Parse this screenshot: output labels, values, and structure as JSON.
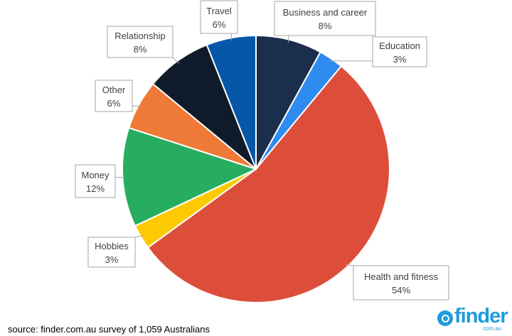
{
  "chart_data": {
    "type": "pie",
    "title": "",
    "slices": [
      {
        "label": "Business and career",
        "value": 8,
        "value_label": "8%",
        "color": "#1b2e4c"
      },
      {
        "label": "Education",
        "value": 3,
        "value_label": "3%",
        "color": "#2e8bf0"
      },
      {
        "label": "Health and fitness",
        "value": 54,
        "value_label": "54%",
        "color": "#dd4e3a"
      },
      {
        "label": "Hobbies",
        "value": 3,
        "value_label": "3%",
        "color": "#fdc903"
      },
      {
        "label": "Money",
        "value": 12,
        "value_label": "12%",
        "color": "#26ad5f"
      },
      {
        "label": "Other",
        "value": 6,
        "value_label": "6%",
        "color": "#ef7a37"
      },
      {
        "label": "Relationship",
        "value": 8,
        "value_label": "8%",
        "color": "#0f1b2a"
      },
      {
        "label": "Travel",
        "value": 6,
        "value_label": "6%",
        "color": "#0657a8"
      }
    ],
    "legend": "none",
    "data_labels": "callouts with category name and percentage"
  },
  "footer": {
    "source": "source: finder.com.au survey of 1,059 Australians"
  },
  "logo": {
    "word": "finder",
    "sub": "com.au",
    "color": "#1e9bdc"
  }
}
